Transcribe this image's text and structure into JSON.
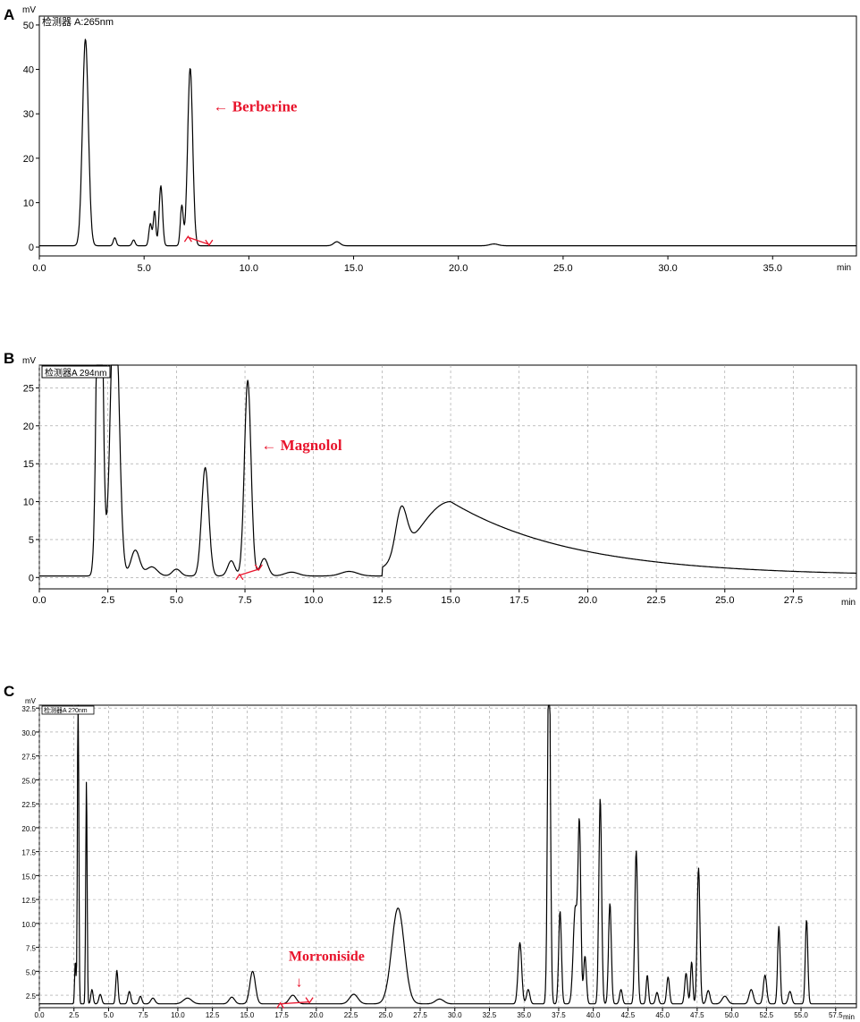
{
  "chart_data": [
    {
      "panel": "A",
      "type": "line",
      "ylabel": "mV",
      "xlabel": "min",
      "detector_label": "检测器 A:265nm",
      "xlim": [
        0,
        39
      ],
      "ylim": [
        -2,
        52
      ],
      "grid": false,
      "x_ticks": [
        "0.0",
        "5.0",
        "10.0",
        "15.0",
        "20.0",
        "25.0",
        "30.0",
        "35.0"
      ],
      "x_tick_values": [
        0,
        5,
        10,
        15,
        20,
        25,
        30,
        35
      ],
      "y_ticks": [
        "0",
        "10",
        "20",
        "30",
        "40",
        "50"
      ],
      "y_tick_values": [
        0,
        10,
        20,
        30,
        40,
        50
      ],
      "baseline": 0.3,
      "peaks": [
        {
          "rt": 2.2,
          "height": 46.5,
          "width": 0.14
        },
        {
          "rt": 3.6,
          "height": 1.8,
          "width": 0.07
        },
        {
          "rt": 4.5,
          "height": 1.3,
          "width": 0.07
        },
        {
          "rt": 5.3,
          "height": 5.0,
          "width": 0.07
        },
        {
          "rt": 5.5,
          "height": 7.8,
          "width": 0.06
        },
        {
          "rt": 5.8,
          "height": 13.5,
          "width": 0.08
        },
        {
          "rt": 6.8,
          "height": 9.0,
          "width": 0.07
        },
        {
          "rt": 7.2,
          "height": 40.0,
          "width": 0.12
        },
        {
          "rt": 14.2,
          "height": 0.9,
          "width": 0.15
        },
        {
          "rt": 21.7,
          "height": 0.4,
          "width": 0.2
        }
      ],
      "annotation": {
        "text": "← Berberine",
        "x": 8.3,
        "y": 30.5
      },
      "marker": {
        "x1": 7.1,
        "y1": 2.2,
        "x2": 8.1,
        "y2": 0.6
      }
    },
    {
      "panel": "B",
      "type": "line",
      "ylabel": "mV",
      "xlabel": "min",
      "detector_label": "检测器A 294nm",
      "xlim": [
        0,
        29.8
      ],
      "ylim": [
        -1.5,
        28
      ],
      "grid": true,
      "x_ticks": [
        "0.0",
        "2.5",
        "5.0",
        "7.5",
        "10.0",
        "12.5",
        "15.0",
        "17.5",
        "20.0",
        "22.5",
        "25.0",
        "27.5"
      ],
      "x_tick_values": [
        0,
        2.5,
        5,
        7.5,
        10,
        12.5,
        15,
        17.5,
        20,
        22.5,
        25,
        27.5
      ],
      "y_ticks": [
        "0",
        "5",
        "10",
        "15",
        "20",
        "25"
      ],
      "y_tick_values": [
        0,
        5,
        10,
        15,
        20,
        25
      ],
      "baseline": 0.2,
      "peaks": [
        {
          "rt": 2.2,
          "height": 60,
          "width": 0.1
        },
        {
          "rt": 2.75,
          "height": 40,
          "width": 0.15
        },
        {
          "rt": 3.5,
          "height": 3.4,
          "width": 0.16
        },
        {
          "rt": 4.1,
          "height": 1.2,
          "width": 0.2
        },
        {
          "rt": 5.0,
          "height": 0.9,
          "width": 0.15
        },
        {
          "rt": 6.05,
          "height": 14.3,
          "width": 0.13
        },
        {
          "rt": 7.0,
          "height": 2.0,
          "width": 0.13
        },
        {
          "rt": 7.6,
          "height": 25.8,
          "width": 0.12
        },
        {
          "rt": 8.2,
          "height": 2.3,
          "width": 0.14
        },
        {
          "rt": 9.2,
          "height": 0.5,
          "width": 0.25
        },
        {
          "rt": 11.3,
          "height": 0.6,
          "width": 0.3
        },
        {
          "rt": 13.2,
          "height": 6.0,
          "width": 0.2
        }
      ],
      "hump": {
        "center": 15.0,
        "height": 9.8,
        "rise_sigma": 1.2,
        "decay_tau": 4.5,
        "start": 12.5
      },
      "annotation": {
        "text": "← Magnolol",
        "x": 8.1,
        "y": 16.8
      },
      "marker": {
        "x1": 7.3,
        "y1": 0.3,
        "x2": 8.0,
        "y2": 1.1
      }
    },
    {
      "panel": "C",
      "type": "line",
      "ylabel": "mV",
      "xlabel": "min",
      "detector_label": "检测器A 2?0nm",
      "xlim": [
        0,
        59
      ],
      "ylim": [
        1.2,
        32.8
      ],
      "grid": true,
      "x_ticks": [
        "0.0",
        "2.5",
        "5.0",
        "7.5",
        "10.0",
        "12.5",
        "15.0",
        "17.5",
        "20.0",
        "22.5",
        "25.0",
        "27.5",
        "30.0",
        "32.5",
        "35.0",
        "37.5",
        "40.0",
        "42.5",
        "45.0",
        "47.5",
        "50.0",
        "52.5",
        "55.0",
        "57.5"
      ],
      "x_tick_values": [
        0,
        2.5,
        5,
        7.5,
        10,
        12.5,
        15,
        17.5,
        20,
        22.5,
        25,
        27.5,
        30,
        32.5,
        35,
        37.5,
        40,
        42.5,
        45,
        47.5,
        50,
        52.5,
        55,
        57.5
      ],
      "y_ticks": [
        "2.5",
        "5.0",
        "7.5",
        "10.0",
        "12.5",
        "15.0",
        "17.5",
        "20.0",
        "22.5",
        "25.0",
        "27.5",
        "30.0",
        "32.5"
      ],
      "y_tick_values": [
        2.5,
        5,
        7.5,
        10,
        12.5,
        15,
        17.5,
        20,
        22.5,
        25,
        27.5,
        30,
        32.5
      ],
      "baseline": 1.6,
      "peaks": [
        {
          "rt": 2.6,
          "height": 4.5,
          "width": 0.05
        },
        {
          "rt": 2.8,
          "height": 33.0,
          "width": 0.05
        },
        {
          "rt": 3.4,
          "height": 23.4,
          "width": 0.05
        },
        {
          "rt": 3.8,
          "height": 1.5,
          "width": 0.08
        },
        {
          "rt": 4.4,
          "height": 1.0,
          "width": 0.1
        },
        {
          "rt": 5.6,
          "height": 3.5,
          "width": 0.08
        },
        {
          "rt": 6.5,
          "height": 1.3,
          "width": 0.1
        },
        {
          "rt": 7.3,
          "height": 0.8,
          "width": 0.1
        },
        {
          "rt": 8.2,
          "height": 0.6,
          "width": 0.15
        },
        {
          "rt": 10.7,
          "height": 0.6,
          "width": 0.3
        },
        {
          "rt": 13.9,
          "height": 0.7,
          "width": 0.2
        },
        {
          "rt": 15.4,
          "height": 3.4,
          "width": 0.2
        },
        {
          "rt": 18.3,
          "height": 0.9,
          "width": 0.25
        },
        {
          "rt": 22.7,
          "height": 1.0,
          "width": 0.3
        },
        {
          "rt": 25.9,
          "height": 10.0,
          "width": 0.45
        },
        {
          "rt": 28.9,
          "height": 0.5,
          "width": 0.3
        },
        {
          "rt": 34.7,
          "height": 6.4,
          "width": 0.13
        },
        {
          "rt": 35.3,
          "height": 1.5,
          "width": 0.12
        },
        {
          "rt": 36.8,
          "height": 40.0,
          "width": 0.1
        },
        {
          "rt": 37.6,
          "height": 9.7,
          "width": 0.1
        },
        {
          "rt": 38.7,
          "height": 10.0,
          "width": 0.15
        },
        {
          "rt": 39.0,
          "height": 18.0,
          "width": 0.1
        },
        {
          "rt": 39.4,
          "height": 5.0,
          "width": 0.1
        },
        {
          "rt": 40.5,
          "height": 21.5,
          "width": 0.1
        },
        {
          "rt": 41.2,
          "height": 10.5,
          "width": 0.1
        },
        {
          "rt": 42.0,
          "height": 1.5,
          "width": 0.1
        },
        {
          "rt": 43.1,
          "height": 16.0,
          "width": 0.1
        },
        {
          "rt": 43.9,
          "height": 3.0,
          "width": 0.08
        },
        {
          "rt": 44.6,
          "height": 1.2,
          "width": 0.1
        },
        {
          "rt": 45.4,
          "height": 2.8,
          "width": 0.1
        },
        {
          "rt": 46.7,
          "height": 3.2,
          "width": 0.1
        },
        {
          "rt": 47.1,
          "height": 4.4,
          "width": 0.08
        },
        {
          "rt": 47.6,
          "height": 14.2,
          "width": 0.1
        },
        {
          "rt": 48.3,
          "height": 1.4,
          "width": 0.12
        },
        {
          "rt": 49.5,
          "height": 0.8,
          "width": 0.2
        },
        {
          "rt": 51.4,
          "height": 1.5,
          "width": 0.15
        },
        {
          "rt": 52.4,
          "height": 3.0,
          "width": 0.12
        },
        {
          "rt": 53.4,
          "height": 8.1,
          "width": 0.09
        },
        {
          "rt": 54.2,
          "height": 1.3,
          "width": 0.12
        },
        {
          "rt": 55.4,
          "height": 8.8,
          "width": 0.09
        }
      ],
      "annotation": {
        "text": "Morroniside",
        "x": 18.0,
        "y": 6.1
      },
      "annotation_arrow": {
        "text": "↓",
        "x": 18.5,
        "y": 3.4
      },
      "marker": {
        "x1": 17.4,
        "y1": 1.6,
        "x2": 19.5,
        "y2": 1.8
      }
    }
  ],
  "colors": {
    "trace": "#000000",
    "annotation": "#e8132b",
    "grid": "#9a9a9a"
  }
}
